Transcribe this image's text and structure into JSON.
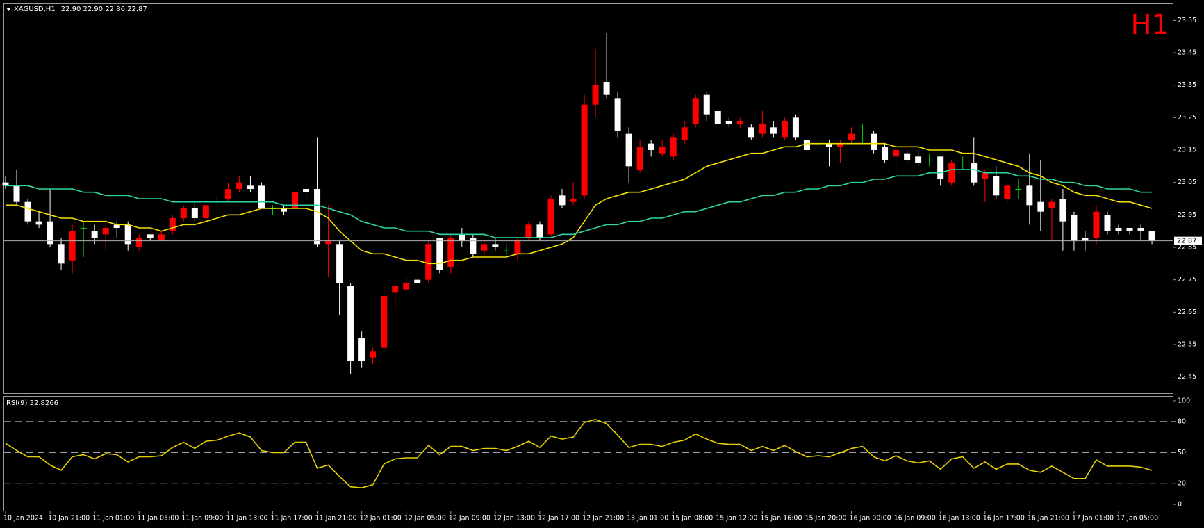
{
  "chart_data": [
    {
      "type": "candlestick",
      "title": "XAGUSD,H1",
      "subtitle": "22.90 22.90 22.86 22.87",
      "annotation": "H1",
      "categories": [
        "10 Jan 2024",
        null,
        null,
        null,
        "10 Jan 21:00",
        null,
        null,
        null,
        "11 Jan 01:00",
        null,
        null,
        null,
        "11 Jan 05:00",
        null,
        null,
        null,
        "11 Jan 09:00",
        null,
        null,
        null,
        "11 Jan 13:00",
        null,
        null,
        null,
        "11 Jan 17:00",
        null,
        null,
        null,
        "11 Jan 21:00",
        null,
        null,
        null,
        "12 Jan 01:00",
        null,
        null,
        null,
        "12 Jan 05:00",
        null,
        null,
        null,
        "12 Jan 09:00",
        null,
        null,
        null,
        "12 Jan 13:00",
        null,
        null,
        null,
        "12 Jan 17:00",
        null,
        null,
        null,
        "12 Jan 21:00",
        null,
        null,
        null,
        "13 Jan 01:00",
        null,
        null,
        null,
        "15 Jan 08:00",
        null,
        null,
        null,
        "15 Jan 12:00",
        null,
        null,
        null,
        "15 Jan 16:00",
        null,
        null,
        null,
        "15 Jan 20:00",
        null,
        null,
        null,
        "16 Jan 00:00",
        null,
        null,
        null,
        "16 Jan 09:00",
        null,
        null,
        null,
        "16 Jan 13:00",
        null,
        null,
        null,
        "16 Jan 17:00",
        null,
        null,
        null,
        "16 Jan 21:00",
        null,
        null,
        null,
        "17 Jan 01:00",
        null,
        null,
        null,
        "17 Jan 05:00",
        null,
        null,
        null
      ],
      "open": [
        23.05,
        23.04,
        22.99,
        22.93,
        22.93,
        22.86,
        22.81,
        22.91,
        22.9,
        22.89,
        22.92,
        22.92,
        22.85,
        22.89,
        22.87,
        22.9,
        22.94,
        22.97,
        22.94,
        23.0,
        23.0,
        23.03,
        23.04,
        23.04,
        22.97,
        22.97,
        22.97,
        23.03,
        23.03,
        22.86,
        22.86,
        22.73,
        22.57,
        22.51,
        22.54,
        22.71,
        22.72,
        22.75,
        22.75,
        22.88,
        22.79,
        22.89,
        22.88,
        22.84,
        22.86,
        22.84,
        22.83,
        22.88,
        22.92,
        22.89,
        23.01,
        22.99,
        23.01,
        23.29,
        23.36,
        23.31,
        23.2,
        23.09,
        23.17,
        23.14,
        23.13,
        23.18,
        23.23,
        23.32,
        23.27,
        23.24,
        23.23,
        23.22,
        23.2,
        23.22,
        23.19,
        23.25,
        23.18,
        23.17,
        23.17,
        23.16,
        23.18,
        23.21,
        23.2,
        23.16,
        23.13,
        23.14,
        23.13,
        23.12,
        23.13,
        23.05,
        23.12,
        23.11,
        23.06,
        23.07,
        23.0,
        23.03,
        23.04,
        22.99,
        22.97,
        23.0,
        22.95,
        22.88,
        22.88,
        22.95,
        22.91,
        22.91,
        22.91,
        22.9
      ],
      "high": [
        23.07,
        23.09,
        23.0,
        22.96,
        23.03,
        22.88,
        22.92,
        22.93,
        22.92,
        22.93,
        22.93,
        22.93,
        22.89,
        22.89,
        22.9,
        22.95,
        22.98,
        22.99,
        22.99,
        23.01,
        23.05,
        23.07,
        23.07,
        23.05,
        22.98,
        22.98,
        23.03,
        23.05,
        23.19,
        22.98,
        22.87,
        22.74,
        22.59,
        22.54,
        22.72,
        22.74,
        22.76,
        22.75,
        22.87,
        22.88,
        22.89,
        22.91,
        22.89,
        22.87,
        22.88,
        22.86,
        22.88,
        22.93,
        22.93,
        23.01,
        23.03,
        23.05,
        23.32,
        23.46,
        23.51,
        23.33,
        23.22,
        23.18,
        23.18,
        23.18,
        23.2,
        23.24,
        23.32,
        23.33,
        23.27,
        23.25,
        23.25,
        23.23,
        23.27,
        23.24,
        23.25,
        23.26,
        23.19,
        23.19,
        23.18,
        23.18,
        23.22,
        23.23,
        23.21,
        23.17,
        23.16,
        23.15,
        23.15,
        23.14,
        23.13,
        23.12,
        23.13,
        23.19,
        23.09,
        23.1,
        23.05,
        23.06,
        23.14,
        23.12,
        23.0,
        23.03,
        22.96,
        22.9,
        22.98,
        22.96,
        22.92,
        22.91,
        22.92,
        22.9
      ],
      "low": [
        23.03,
        22.98,
        22.92,
        22.91,
        22.85,
        22.78,
        22.77,
        22.82,
        22.86,
        22.84,
        22.88,
        22.84,
        22.84,
        22.87,
        22.87,
        22.89,
        22.93,
        22.93,
        22.93,
        22.98,
        22.99,
        23.02,
        23.02,
        22.97,
        22.95,
        22.95,
        22.96,
        22.99,
        22.85,
        22.76,
        22.64,
        22.46,
        22.48,
        22.49,
        22.53,
        22.66,
        22.72,
        22.74,
        22.74,
        22.77,
        22.77,
        22.85,
        22.82,
        22.82,
        22.84,
        22.83,
        22.81,
        22.87,
        22.87,
        22.88,
        22.97,
        22.98,
        23.0,
        23.25,
        23.31,
        23.19,
        23.05,
        23.08,
        23.13,
        23.13,
        23.12,
        23.17,
        23.22,
        23.24,
        23.23,
        23.22,
        23.22,
        23.18,
        23.19,
        23.19,
        23.18,
        23.18,
        23.14,
        23.13,
        23.1,
        23.11,
        23.17,
        23.17,
        23.14,
        23.11,
        23.08,
        23.11,
        23.1,
        23.1,
        23.04,
        23.04,
        23.09,
        23.04,
        22.99,
        23.0,
        22.99,
        23.0,
        22.92,
        22.9,
        22.87,
        22.84,
        22.84,
        22.84,
        22.86,
        22.89,
        22.89,
        22.89,
        22.87,
        22.86
      ],
      "close": [
        23.04,
        22.99,
        22.93,
        22.92,
        22.86,
        22.8,
        22.9,
        22.91,
        22.88,
        22.91,
        22.91,
        22.86,
        22.88,
        22.88,
        22.89,
        22.94,
        22.97,
        22.94,
        22.98,
        23.0,
        23.03,
        23.05,
        23.03,
        22.97,
        22.97,
        22.96,
        23.02,
        23.02,
        22.86,
        22.87,
        22.74,
        22.5,
        22.5,
        22.53,
        22.7,
        22.73,
        22.74,
        22.74,
        22.86,
        22.78,
        22.88,
        22.87,
        22.83,
        22.86,
        22.85,
        22.84,
        22.87,
        22.92,
        22.88,
        23.0,
        22.98,
        23.0,
        23.29,
        23.35,
        23.32,
        23.21,
        23.1,
        23.16,
        23.15,
        23.16,
        23.19,
        23.22,
        23.31,
        23.26,
        23.23,
        23.23,
        23.24,
        23.19,
        23.23,
        23.2,
        23.24,
        23.19,
        23.15,
        23.17,
        23.16,
        23.17,
        23.2,
        23.21,
        23.15,
        23.12,
        23.15,
        23.12,
        23.11,
        23.12,
        23.06,
        23.11,
        23.12,
        23.05,
        23.08,
        23.01,
        23.04,
        23.03,
        22.98,
        22.96,
        22.99,
        22.93,
        22.87,
        22.87,
        22.96,
        22.9,
        22.9,
        22.9,
        22.9,
        22.87
      ],
      "up_color": "#ff0000",
      "down_color": "#ffffff",
      "doji_color": "#00d000",
      "overlays": [
        {
          "color": "#f0e000",
          "values": [
            22.98,
            22.98,
            22.97,
            22.96,
            22.95,
            22.94,
            22.94,
            22.93,
            22.93,
            22.93,
            22.92,
            22.92,
            22.91,
            22.91,
            22.9,
            22.91,
            22.92,
            22.92,
            22.93,
            22.94,
            22.95,
            22.95,
            22.96,
            22.97,
            22.97,
            22.97,
            22.97,
            22.97,
            22.96,
            22.94,
            22.9,
            22.87,
            22.84,
            22.83,
            22.83,
            22.82,
            22.81,
            22.81,
            22.8,
            22.8,
            22.81,
            22.81,
            22.82,
            22.82,
            22.82,
            22.82,
            22.83,
            22.83,
            22.84,
            22.85,
            22.86,
            22.88,
            22.93,
            22.98,
            23.0,
            23.01,
            23.02,
            23.02,
            23.03,
            23.04,
            23.05,
            23.06,
            23.08,
            23.1,
            23.11,
            23.12,
            23.13,
            23.14,
            23.14,
            23.15,
            23.16,
            23.16,
            23.17,
            23.17,
            23.17,
            23.17,
            23.17,
            23.17,
            23.17,
            23.17,
            23.16,
            23.16,
            23.16,
            23.15,
            23.15,
            23.15,
            23.14,
            23.14,
            23.13,
            23.12,
            23.11,
            23.1,
            23.08,
            23.07,
            23.05,
            23.04,
            23.02,
            23.01,
            23.01,
            23.0,
            22.99,
            22.99,
            22.98,
            22.97
          ]
        },
        {
          "color": "#2ad6a6",
          "values": [
            23.04,
            23.04,
            23.04,
            23.03,
            23.03,
            23.03,
            23.03,
            23.02,
            23.02,
            23.01,
            23.01,
            23.01,
            23.0,
            23.0,
            23.0,
            22.99,
            22.99,
            22.99,
            22.99,
            22.99,
            22.99,
            22.99,
            22.99,
            22.99,
            22.99,
            22.98,
            22.98,
            22.98,
            22.98,
            22.97,
            22.96,
            22.95,
            22.93,
            22.92,
            22.91,
            22.91,
            22.9,
            22.9,
            22.9,
            22.89,
            22.89,
            22.89,
            22.89,
            22.89,
            22.88,
            22.88,
            22.88,
            22.88,
            22.88,
            22.88,
            22.89,
            22.89,
            22.9,
            22.91,
            22.92,
            22.92,
            22.93,
            22.93,
            22.94,
            22.94,
            22.95,
            22.96,
            22.96,
            22.97,
            22.98,
            22.99,
            22.99,
            23.0,
            23.01,
            23.01,
            23.02,
            23.02,
            23.03,
            23.03,
            23.04,
            23.04,
            23.05,
            23.05,
            23.06,
            23.06,
            23.07,
            23.07,
            23.07,
            23.08,
            23.08,
            23.09,
            23.09,
            23.09,
            23.08,
            23.08,
            23.08,
            23.07,
            23.07,
            23.06,
            23.06,
            23.05,
            23.05,
            23.04,
            23.04,
            23.03,
            23.03,
            23.03,
            23.02,
            23.02
          ]
        }
      ],
      "price_line": {
        "value": 22.87,
        "label": "22.87"
      },
      "ylim": [
        22.4,
        23.6
      ],
      "yticks": [
        23.55,
        23.45,
        23.35,
        23.25,
        23.15,
        23.05,
        22.95,
        22.85,
        22.75,
        22.65,
        22.55,
        22.45
      ]
    },
    {
      "type": "line",
      "title": "RSI(9) 32.8266",
      "color": "#e6d200",
      "values": [
        59,
        52,
        46,
        46,
        38,
        33,
        46,
        48,
        44,
        49,
        48,
        41,
        46,
        46,
        47,
        55,
        60,
        54,
        61,
        62,
        66,
        69,
        65,
        52,
        50,
        50,
        60,
        60,
        35,
        38,
        27,
        17,
        16,
        19,
        39,
        44,
        45,
        45,
        57,
        48,
        56,
        56,
        52,
        54,
        54,
        52,
        56,
        61,
        55,
        66,
        63,
        65,
        79,
        82,
        78,
        67,
        55,
        58,
        58,
        56,
        60,
        62,
        68,
        63,
        59,
        58,
        58,
        52,
        56,
        52,
        57,
        51,
        46,
        47,
        46,
        50,
        54,
        56,
        46,
        42,
        47,
        42,
        40,
        42,
        34,
        44,
        46,
        35,
        41,
        34,
        39,
        39,
        33,
        31,
        37,
        31,
        25,
        25,
        43,
        37,
        37,
        37,
        36,
        32.8266
      ],
      "levels": [
        80,
        50,
        20
      ],
      "ylim": [
        -6,
        104
      ],
      "yticks": [
        100,
        80,
        50,
        20,
        0
      ]
    }
  ]
}
